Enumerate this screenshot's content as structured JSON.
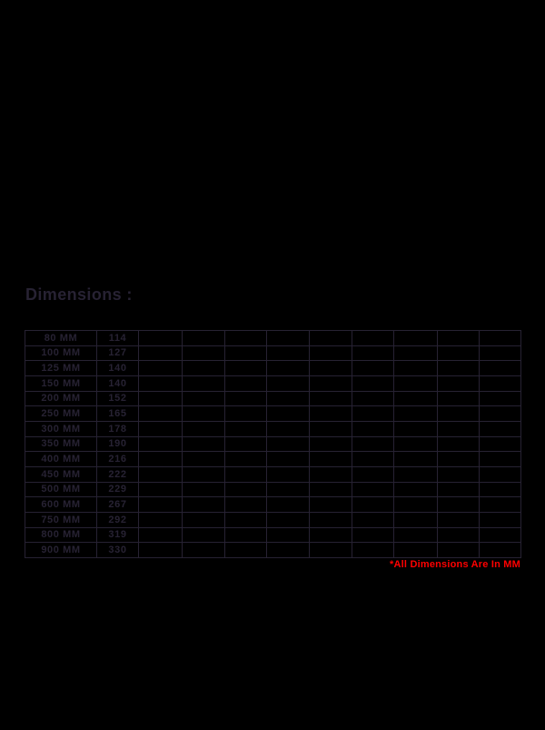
{
  "page": {
    "background": "#000000",
    "ink_color": "#272233"
  },
  "section": {
    "heading": "Dimensions :"
  },
  "table": {
    "type": "table",
    "empty_columns": 9,
    "rows": [
      {
        "size": "80 MM",
        "value": "114"
      },
      {
        "size": "100 MM",
        "value": "127"
      },
      {
        "size": "125 MM",
        "value": "140"
      },
      {
        "size": "150 MM",
        "value": "140"
      },
      {
        "size": "200 MM",
        "value": "152"
      },
      {
        "size": "250 MM",
        "value": "165"
      },
      {
        "size": "300 MM",
        "value": "178"
      },
      {
        "size": "350 MM",
        "value": "190"
      },
      {
        "size": "400 MM",
        "value": "216"
      },
      {
        "size": "450 MM",
        "value": "222"
      },
      {
        "size": "500 MM",
        "value": "229"
      },
      {
        "size": "600 MM",
        "value": "267"
      },
      {
        "size": "750 MM",
        "value": "292"
      },
      {
        "size": "800 MM",
        "value": "319"
      },
      {
        "size": "900 MM",
        "value": "330"
      }
    ]
  },
  "note": {
    "text": "*All Dimensions Are In MM",
    "color": "#ff0000"
  }
}
